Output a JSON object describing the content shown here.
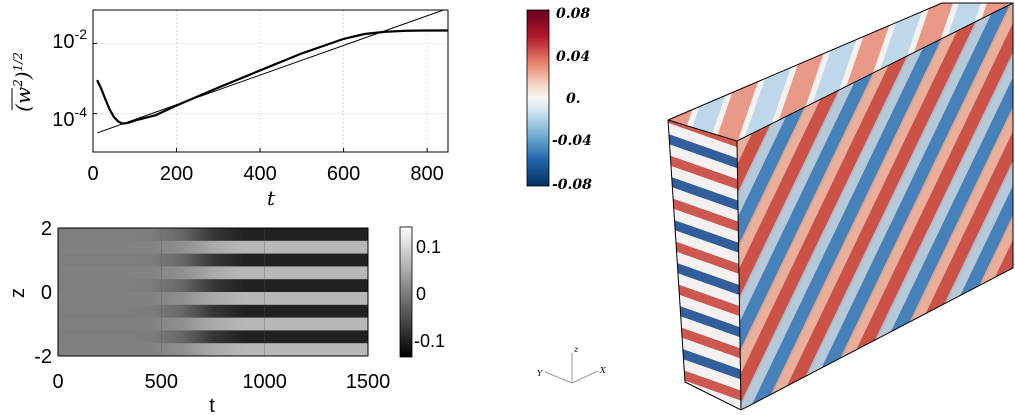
{
  "chart_data": [
    {
      "type": "line",
      "xlabel": "t",
      "ylabel": "(̅w²)¹ᐟ²",
      "ylabel_parts": {
        "main": "(w",
        "sup": "2",
        "close": ")",
        "pow": "1/2"
      },
      "yscale": "log",
      "xlim": [
        0,
        850
      ],
      "ylim": [
        8e-06,
        0.09
      ],
      "x_ticks": [
        "0",
        "200",
        "400",
        "600",
        "800"
      ],
      "y_ticks": [
        {
          "base": "10",
          "exp": "-2"
        },
        {
          "base": "10",
          "exp": "-4"
        }
      ],
      "grid": true,
      "series": [
        {
          "x": [
            10,
            20,
            30,
            40,
            50,
            60,
            70,
            80,
            90,
            100,
            150,
            200,
            300,
            400,
            500,
            600,
            650,
            700,
            750,
            800,
            850
          ],
          "y": [
            0.0009,
            0.0005,
            0.00025,
            0.00013,
            8e-05,
            6e-05,
            5.2e-05,
            5.3e-05,
            5.7e-05,
            6.3e-05,
            9e-05,
            0.00017,
            0.00055,
            0.0017,
            0.0052,
            0.0135,
            0.0186,
            0.0215,
            0.023,
            0.0234,
            0.0234
          ]
        },
        {
          "x": [
            10,
            850
          ],
          "y": [
            2.8e-05,
            0.1
          ]
        }
      ]
    },
    {
      "type": "heatmap",
      "xlabel": "t",
      "ylabel": "z",
      "xlim": [
        0,
        1500
      ],
      "ylim": [
        -2,
        2
      ],
      "x_ticks": [
        "0",
        "500",
        "1000",
        "1500"
      ],
      "y_ticks": [
        "2",
        "0",
        "-2"
      ],
      "colorbar": {
        "range": [
          -0.15,
          0.15
        ],
        "ticks": [
          "0.1",
          "0",
          "-0.1"
        ]
      },
      "bands_per_unit_z": 1.27,
      "growth_onset_t": 500,
      "saturation_t": 800
    },
    {
      "type": "heatmap",
      "description_kind": "3d-box-render",
      "colorbar": {
        "range": [
          -0.08,
          0.08
        ],
        "ticks": [
          "0.08",
          "0.04",
          "0.",
          "-0.04",
          "-0.08"
        ]
      },
      "axes_triad": [
        "Y",
        "z",
        "X"
      ]
    }
  ],
  "colors": {
    "red": "#b2182b",
    "blue": "#2166ac",
    "white": "#f7f7f7"
  }
}
